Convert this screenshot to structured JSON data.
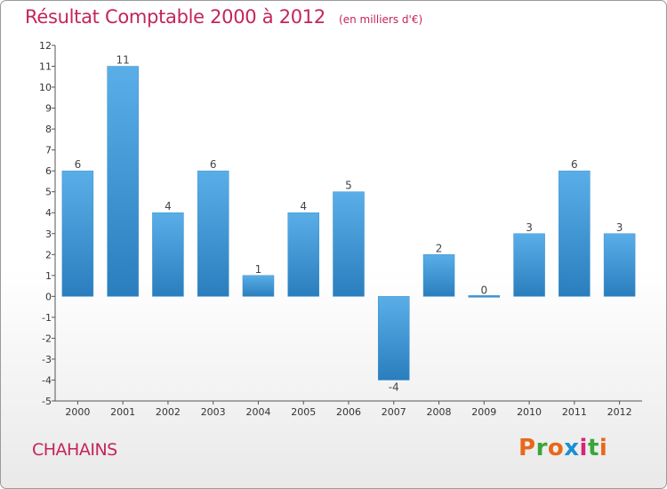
{
  "header": {
    "title": "Résultat Comptable 2000 à 2012",
    "subtitle": "(en milliers d'€)"
  },
  "footer": {
    "commune": "CHAHAINS",
    "logo_letters": [
      "P",
      "r",
      "o",
      "x",
      "i",
      "t",
      "i"
    ]
  },
  "colors": {
    "title": "#c4245e",
    "bar_light": "#5aaee8",
    "bar_dark": "#2a7ebd",
    "logo": [
      "#e8681a",
      "#3aa53a",
      "#e8681a",
      "#1a8fd4",
      "#d4267a",
      "#3aa53a",
      "#e8681a"
    ]
  },
  "chart_data": {
    "type": "bar",
    "title": "Résultat Comptable 2000 à 2012",
    "unit": "(en milliers d'€)",
    "xlabel": "",
    "ylabel": "",
    "categories": [
      "2000",
      "2001",
      "2002",
      "2003",
      "2004",
      "2005",
      "2006",
      "2007",
      "2008",
      "2009",
      "2010",
      "2011",
      "2012"
    ],
    "values": [
      6,
      11,
      4,
      6,
      1,
      4,
      5,
      -4,
      2,
      0,
      3,
      6,
      3
    ],
    "data_labels": [
      "6",
      "11",
      "4",
      "6",
      "1",
      "4",
      "5",
      "-4",
      "2",
      "0",
      "3",
      "6",
      "3"
    ],
    "ylim": [
      -5,
      12
    ],
    "yticks": [
      "-5",
      "-4",
      "-3",
      "-2",
      "-1",
      "0",
      "1",
      "2",
      "3",
      "4",
      "5",
      "6",
      "7",
      "8",
      "9",
      "10",
      "11",
      "12"
    ],
    "grid": false,
    "legend": "none"
  }
}
